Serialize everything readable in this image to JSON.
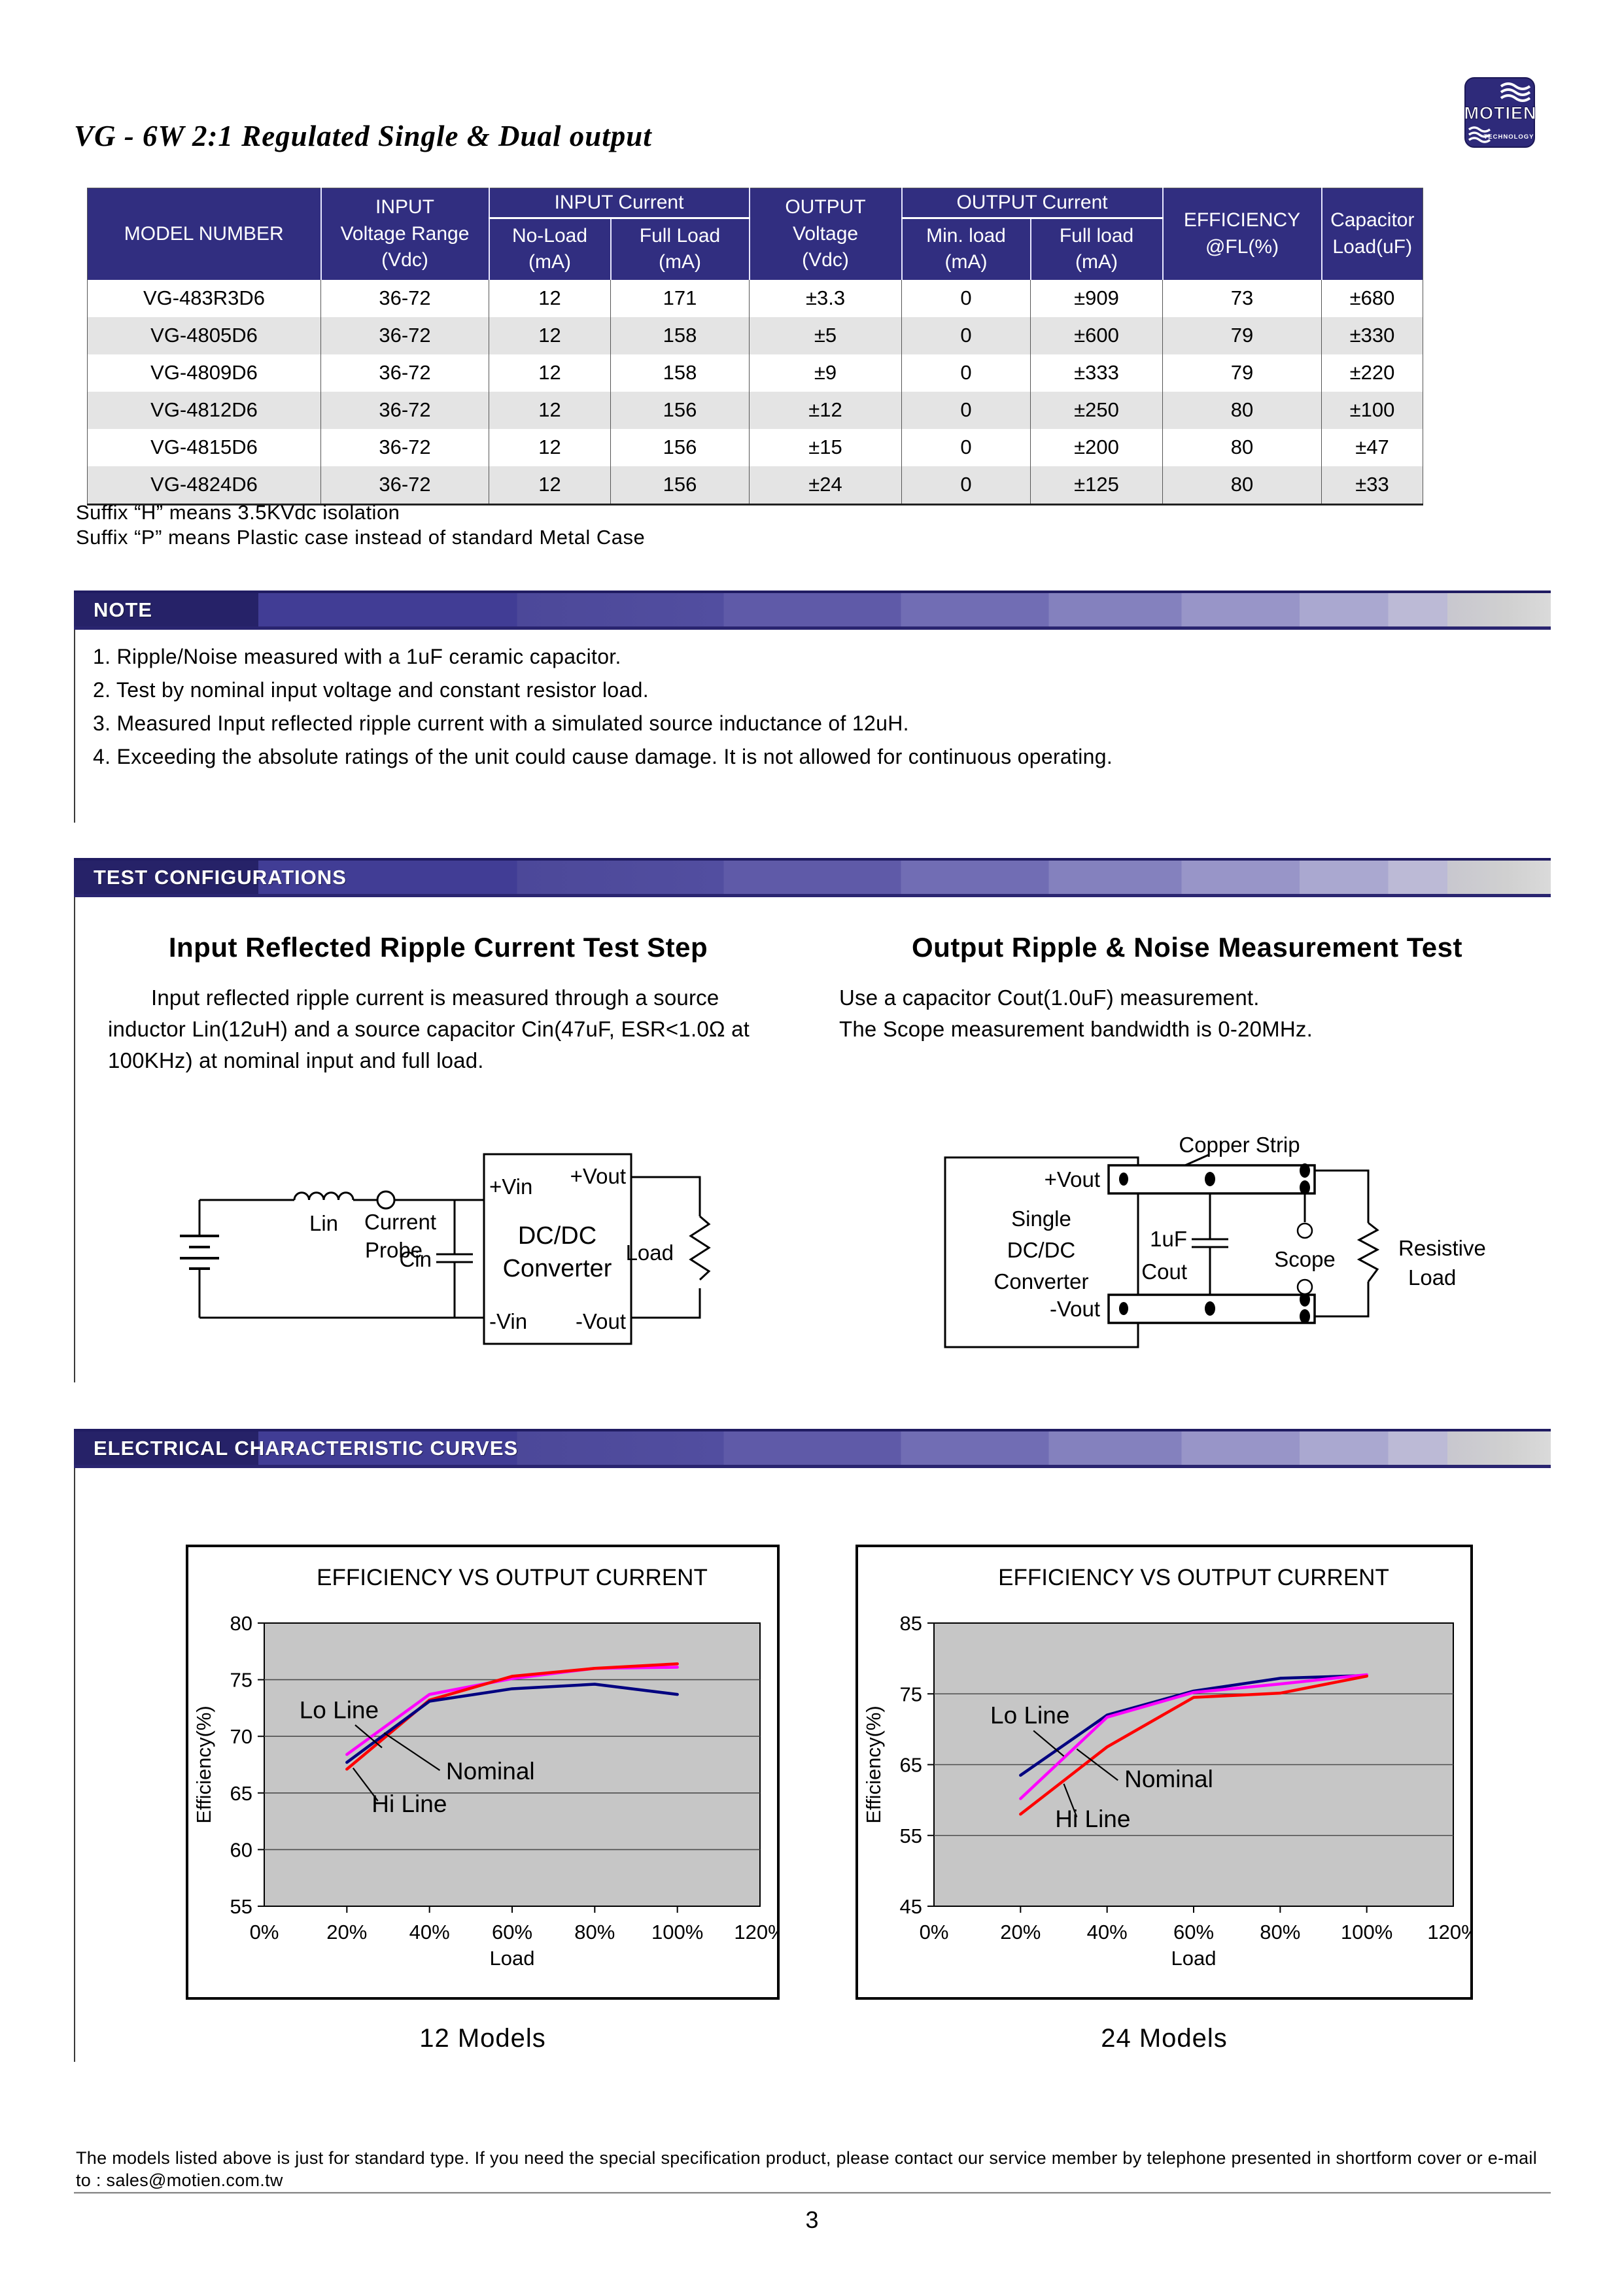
{
  "page": {
    "title": "VG - 6W 2:1 Regulated Single & Dual output",
    "page_number": "3",
    "footer_line1": "The models listed above is just for standard type. If you need the special specification product, please contact our service member by telephone presented in shortform cover or e-mail",
    "footer_line2": "to : sales@motien.com.tw"
  },
  "logo": {
    "brand": "MOTIEN",
    "tagline": "TECHNOLOGY"
  },
  "accent": {
    "table_header": "#312e80",
    "row_alt": "#e4e4e4",
    "plot_bg": "#c6c6c6",
    "bar_dark": "#262268"
  },
  "spec_table": {
    "header": {
      "model": "MODEL NUMBER",
      "input_group": "INPUT",
      "input_voltage_range": "Voltage Range",
      "input_voltage_unit": "(Vdc)",
      "input_current_group": "INPUT Current",
      "no_load": "No-Load",
      "no_load_unit": "(mA)",
      "full_load": "Full Load",
      "full_load_unit": "(mA)",
      "output_group": "OUTPUT",
      "output_voltage": "Voltage",
      "output_voltage_unit": "(Vdc)",
      "output_current_group": "OUTPUT Current",
      "min_load": "Min. load",
      "min_load_unit": "(mA)",
      "out_full_load": "Full load",
      "out_full_load_unit": "(mA)",
      "efficiency_line1": "EFFICIENCY",
      "efficiency_line2": "@FL(%)",
      "capacitor_line1": "Capacitor",
      "capacitor_line2": "Load(uF)"
    },
    "rows": [
      [
        "VG-483R3D6",
        "36-72",
        "12",
        "171",
        "±3.3",
        "0",
        "±909",
        "73",
        "±680"
      ],
      [
        "VG-4805D6",
        "36-72",
        "12",
        "158",
        "±5",
        "0",
        "±600",
        "79",
        "±330"
      ],
      [
        "VG-4809D6",
        "36-72",
        "12",
        "158",
        "±9",
        "0",
        "±333",
        "79",
        "±220"
      ],
      [
        "VG-4812D6",
        "36-72",
        "12",
        "156",
        "±12",
        "0",
        "±250",
        "80",
        "±100"
      ],
      [
        "VG-4815D6",
        "36-72",
        "12",
        "156",
        "±15",
        "0",
        "±200",
        "80",
        "±47"
      ],
      [
        "VG-4824D6",
        "36-72",
        "12",
        "156",
        "±24",
        "0",
        "±125",
        "80",
        "±33"
      ]
    ]
  },
  "suffix_notes": {
    "line1": "Suffix “H” means 3.5KVdc isolation",
    "line2": "Suffix “P” means Plastic case instead of standard Metal Case"
  },
  "note_section": {
    "title": "NOTE",
    "items": [
      "1. Ripple/Noise measured with a 1uF ceramic capacitor.",
      "2. Test by nominal input voltage and constant resistor load.",
      "3. Measured Input reflected ripple current with a simulated source inductance of 12uH.",
      "4. Exceeding the absolute ratings of the unit could cause damage.  It is not allowed for continuous operating."
    ]
  },
  "test_section": {
    "title": "TEST CONFIGURATIONS",
    "left_heading": "Input Reflected Ripple Current Test Step",
    "left_body": "Input reflected ripple current is measured through a source inductor Lin(12uH) and a source capacitor Cin(47uF, ESR<1.0Ω at 100KHz) at nominal input and full load.",
    "right_heading": "Output Ripple & Noise Measurement Test",
    "right_body_line1": "Use a capacitor Cout(1.0uF) measurement.",
    "right_body_line2": "The Scope measurement bandwidth is 0-20MHz."
  },
  "diagram_left": {
    "lin": "Lin",
    "current": "Current",
    "probe": "Probe",
    "cin": "Cin",
    "plus_vin": "+Vin",
    "minus_vin": "-Vin",
    "dcdc": "DC/DC",
    "converter": "Converter",
    "plus_vout": "+Vout",
    "minus_vout": "-Vout",
    "load": "Load"
  },
  "diagram_right": {
    "single": "Single",
    "dcdc": "DC/DC",
    "converter": "Converter",
    "plus_vout": "+Vout",
    "minus_vout": "-Vout",
    "copper_strip": "Copper Strip",
    "cap_value": "1uF",
    "cout": "Cout",
    "scope": "Scope",
    "resistive": "Resistive",
    "load": "Load"
  },
  "curves_section": {
    "title": "ELECTRICAL CHARACTERISTIC CURVES"
  },
  "chart_data": [
    {
      "type": "line",
      "title": "EFFICIENCY VS OUTPUT CURRENT",
      "xlabel": "Load",
      "ylabel": "Efficiency(%)",
      "x_ticks": [
        "0%",
        "20%",
        "40%",
        "60%",
        "80%",
        "100%",
        "120%"
      ],
      "x_tick_values": [
        0,
        20,
        40,
        60,
        80,
        100,
        120
      ],
      "xlim": [
        0,
        120
      ],
      "ylim": [
        55,
        80
      ],
      "y_step": 5,
      "grid": true,
      "legend": "none",
      "caption": "12 Models",
      "series": [
        {
          "name": "Lo Line",
          "color": "#ff00ff",
          "x": [
            20,
            40,
            60,
            80,
            100
          ],
          "y": [
            68.4,
            73.7,
            75.1,
            76.0,
            76.1
          ]
        },
        {
          "name": "Nominal",
          "color": "#ff0000",
          "x": [
            20,
            40,
            60,
            80,
            100
          ],
          "y": [
            67.1,
            73.2,
            75.3,
            76.0,
            76.4
          ]
        },
        {
          "name": "Hi Line",
          "color": "#000080",
          "x": [
            20,
            40,
            60,
            80,
            100
          ],
          "y": [
            67.7,
            73.1,
            74.2,
            74.6,
            73.7
          ]
        }
      ],
      "annotations": [
        {
          "text": "Lo Line",
          "tx": 8.5,
          "ty": 71.6,
          "line": [
            22,
            71.0,
            28.5,
            69.0
          ]
        },
        {
          "text": "Nominal",
          "tx": 44,
          "ty": 66.2,
          "line": [
            42.5,
            67.0,
            29,
            70.3
          ]
        },
        {
          "text": "Hi Line",
          "tx": 26,
          "ty": 63.3,
          "line": [
            27.5,
            64.3,
            21.5,
            67.2
          ]
        }
      ]
    },
    {
      "type": "line",
      "title": "EFFICIENCY VS OUTPUT CURRENT",
      "xlabel": "Load",
      "ylabel": "Efficiency(%)",
      "x_ticks": [
        "0%",
        "20%",
        "40%",
        "60%",
        "80%",
        "100%",
        "120%"
      ],
      "x_tick_values": [
        0,
        20,
        40,
        60,
        80,
        100,
        120
      ],
      "xlim": [
        0,
        120
      ],
      "ylim": [
        45,
        85
      ],
      "y_step": 10,
      "grid": true,
      "legend": "none",
      "caption": "24 Models",
      "series": [
        {
          "name": "Lo Line",
          "color": "#000080",
          "x": [
            20,
            40,
            60,
            80,
            100
          ],
          "y": [
            63.5,
            72.0,
            75.4,
            77.2,
            77.6
          ]
        },
        {
          "name": "Nominal",
          "color": "#ff00ff",
          "x": [
            20,
            40,
            60,
            80,
            100
          ],
          "y": [
            60.2,
            71.7,
            75.2,
            76.4,
            77.7
          ]
        },
        {
          "name": "Hi Line",
          "color": "#ff0000",
          "x": [
            20,
            40,
            60,
            80,
            100
          ],
          "y": [
            58.0,
            67.5,
            74.5,
            75.1,
            77.5
          ]
        }
      ],
      "annotations": [
        {
          "text": "Lo Line",
          "tx": 13,
          "ty": 70.8,
          "line": [
            23,
            69.8,
            30,
            66.2
          ]
        },
        {
          "text": "Nominal",
          "tx": 44,
          "ty": 61.8,
          "line": [
            42.5,
            62.8,
            33,
            67.2
          ]
        },
        {
          "text": "Hi Line",
          "tx": 28,
          "ty": 56.2,
          "line": [
            33,
            57.6,
            30,
            62.3
          ]
        }
      ]
    }
  ]
}
